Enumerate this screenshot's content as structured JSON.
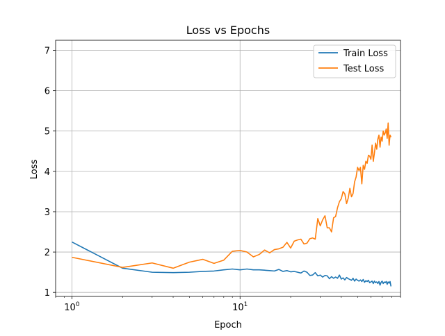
{
  "chart_data": {
    "type": "line",
    "title": "Loss vs Epochs",
    "xlabel": "Epoch",
    "ylabel": "Loss",
    "xscale": "log",
    "xlim": [
      0.8,
      90
    ],
    "ylim": [
      0.9,
      7.25
    ],
    "xticks": [
      {
        "value": 1,
        "base": "10",
        "exp": "0"
      },
      {
        "value": 10,
        "base": "10",
        "exp": "1"
      }
    ],
    "yticks": [
      1,
      2,
      3,
      4,
      5,
      6,
      7
    ],
    "grid": true,
    "legend_position": "top-right",
    "series": [
      {
        "name": "Train Loss",
        "color": "#1f77b4",
        "x": [
          0,
          1,
          2,
          3,
          4,
          5,
          6,
          7,
          8,
          9,
          10,
          11,
          12,
          13,
          14,
          15,
          16,
          17,
          18,
          19,
          20,
          21,
          22,
          23,
          24,
          25,
          26,
          27,
          28,
          29,
          30,
          31,
          32,
          33,
          34,
          35,
          36,
          37,
          38,
          39,
          40,
          41,
          42,
          43,
          44,
          45,
          46,
          47,
          48,
          49,
          50,
          51,
          52,
          53,
          54,
          55,
          56,
          57,
          58,
          59,
          60,
          61,
          62,
          63,
          64,
          65,
          66,
          67,
          68,
          69,
          70,
          71,
          72,
          73,
          74,
          75,
          76,
          77,
          78,
          79
        ],
        "y": [
          2.25,
          2.25,
          1.6,
          1.5,
          1.49,
          1.5,
          1.52,
          1.53,
          1.56,
          1.58,
          1.56,
          1.58,
          1.56,
          1.56,
          1.55,
          1.54,
          1.53,
          1.57,
          1.52,
          1.54,
          1.51,
          1.52,
          1.5,
          1.48,
          1.53,
          1.5,
          1.42,
          1.43,
          1.49,
          1.41,
          1.43,
          1.38,
          1.42,
          1.41,
          1.34,
          1.39,
          1.35,
          1.38,
          1.35,
          1.43,
          1.33,
          1.36,
          1.31,
          1.37,
          1.34,
          1.32,
          1.3,
          1.35,
          1.28,
          1.33,
          1.3,
          1.28,
          1.31,
          1.27,
          1.32,
          1.25,
          1.29,
          1.27,
          1.3,
          1.24,
          1.26,
          1.28,
          1.22,
          1.28,
          1.24,
          1.26,
          1.22,
          1.27,
          1.18,
          1.25,
          1.28,
          1.22,
          1.26,
          1.24,
          1.27,
          1.2,
          1.26,
          1.23,
          1.27,
          1.15
        ]
      },
      {
        "name": "Test Loss",
        "color": "#ff7f0e",
        "x": [
          0,
          1,
          2,
          3,
          4,
          5,
          6,
          7,
          8,
          9,
          10,
          11,
          12,
          13,
          14,
          15,
          16,
          17,
          18,
          19,
          20,
          21,
          22,
          23,
          24,
          25,
          26,
          27,
          28,
          29,
          30,
          31,
          32,
          33,
          34,
          35,
          36,
          37,
          38,
          39,
          40,
          41,
          42,
          43,
          44,
          45,
          46,
          47,
          48,
          49,
          50,
          51,
          52,
          53,
          54,
          55,
          56,
          57,
          58,
          59,
          60,
          61,
          62,
          63,
          64,
          65,
          66,
          67,
          68,
          69,
          70,
          71,
          72,
          73,
          74,
          75,
          76,
          77,
          78,
          79
        ],
        "y": [
          1.87,
          1.87,
          1.62,
          1.73,
          1.6,
          1.75,
          1.82,
          1.72,
          1.8,
          2.02,
          2.04,
          2.0,
          1.88,
          1.94,
          2.05,
          1.98,
          2.06,
          2.08,
          2.12,
          2.24,
          2.1,
          2.27,
          2.3,
          2.32,
          2.2,
          2.22,
          2.33,
          2.35,
          2.32,
          2.83,
          2.65,
          2.8,
          2.9,
          2.6,
          2.6,
          2.5,
          2.85,
          2.88,
          3.1,
          3.25,
          3.32,
          3.5,
          3.44,
          3.2,
          3.34,
          3.58,
          3.37,
          3.45,
          3.74,
          3.86,
          4.1,
          4.02,
          4.1,
          3.69,
          4.15,
          4.05,
          4.25,
          4.2,
          4.4,
          4.38,
          4.3,
          4.65,
          4.25,
          4.46,
          4.7,
          4.55,
          4.8,
          4.9,
          4.6,
          4.85,
          4.75,
          5.0,
          4.9,
          4.95,
          5.05,
          4.82,
          5.2,
          4.65,
          4.9,
          4.85
        ]
      }
    ]
  }
}
